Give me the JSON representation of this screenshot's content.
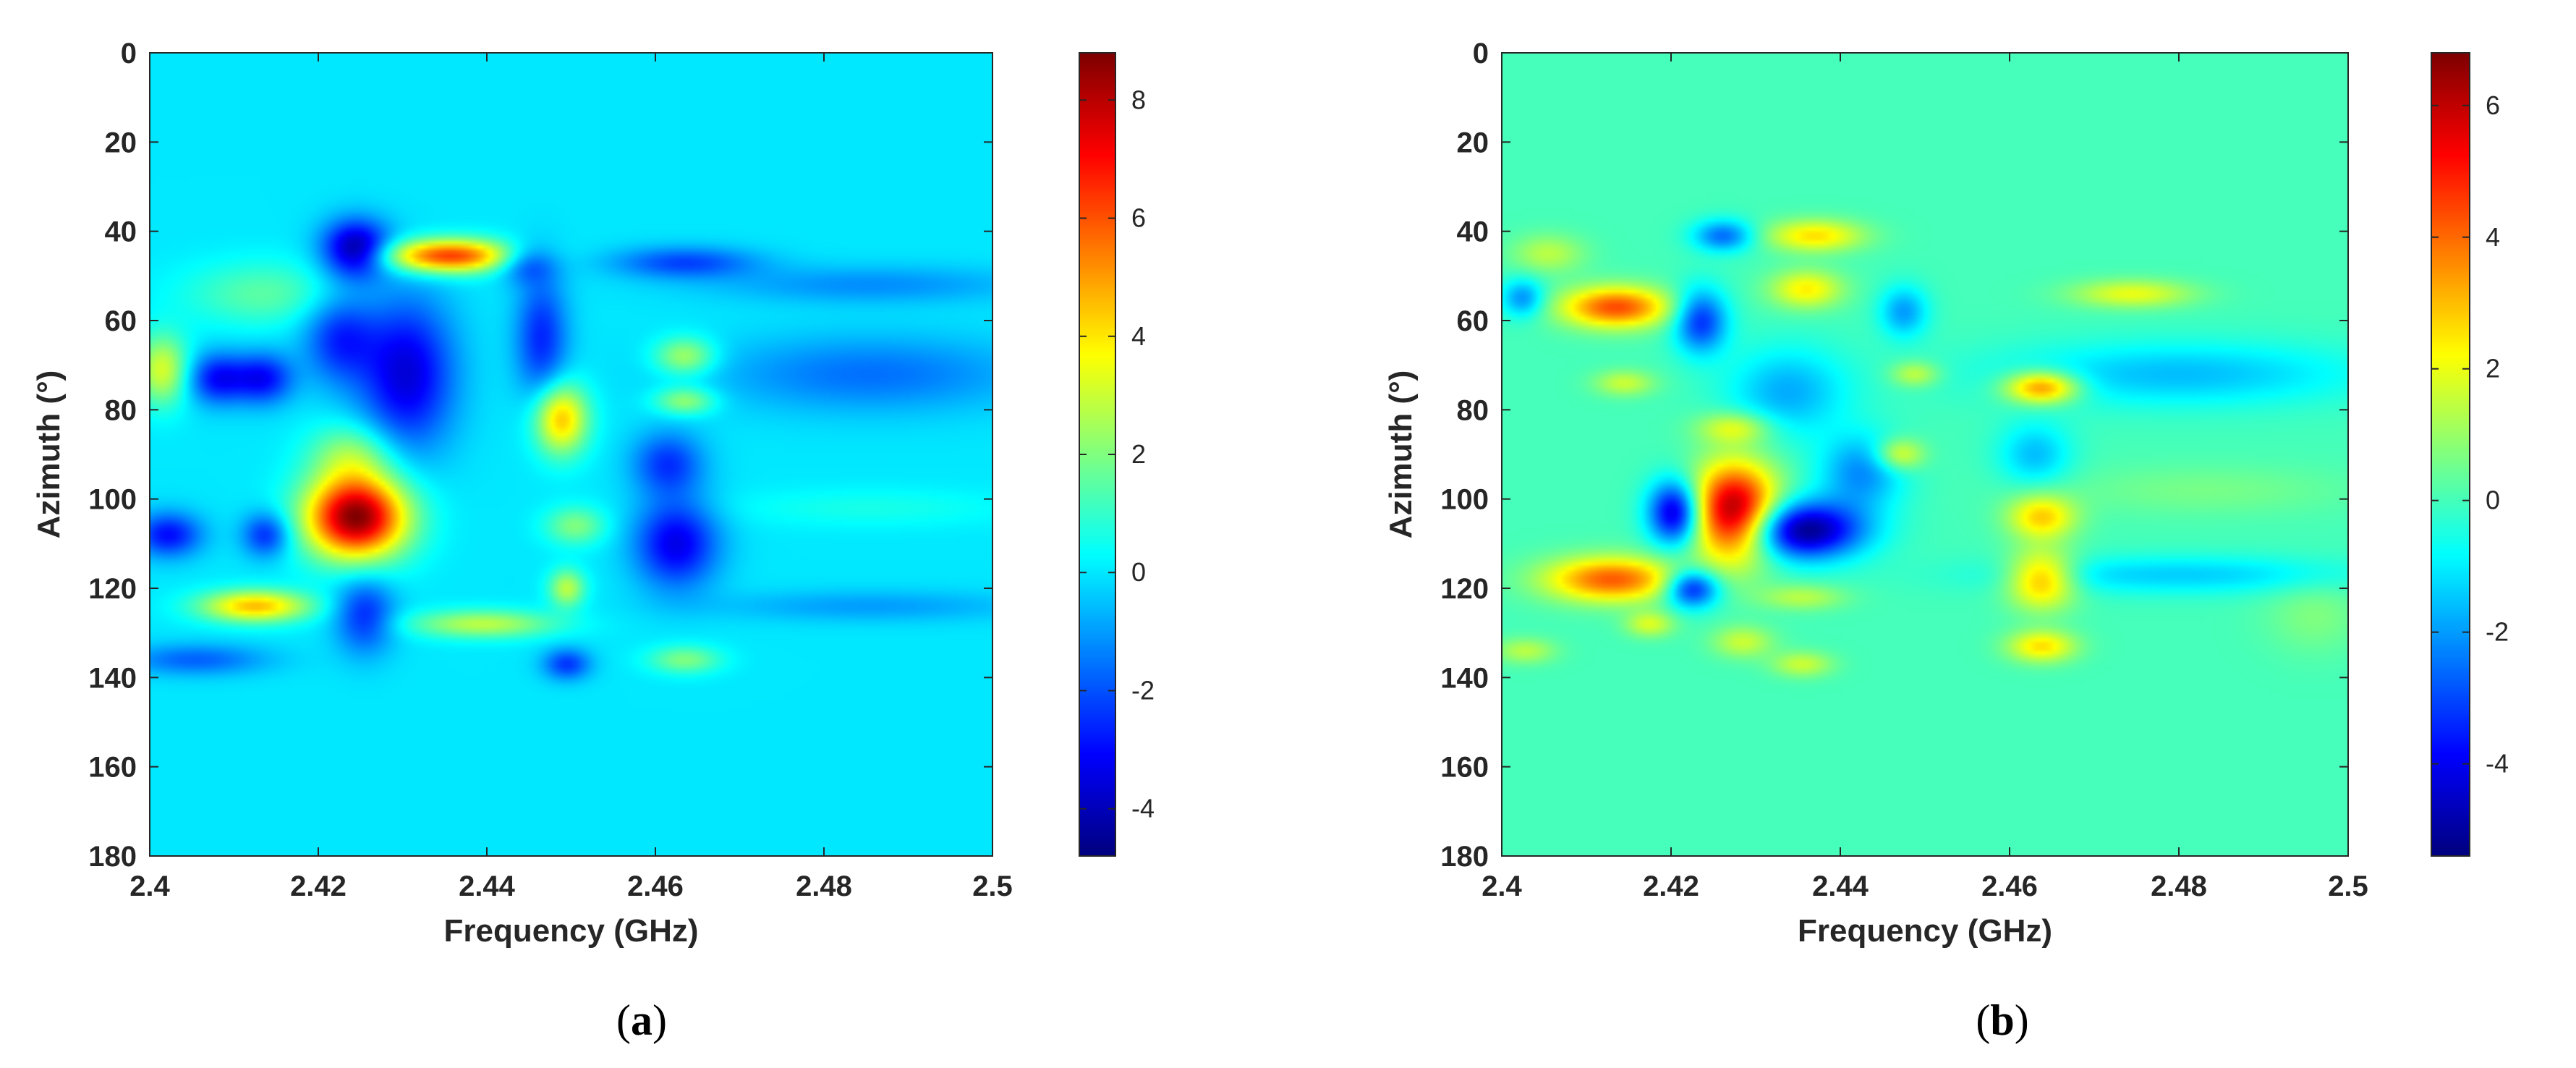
{
  "chart_data": [
    {
      "type": "heatmap",
      "panel": "(a)",
      "panel_letter": "a",
      "xlabel": "Frequency (GHz)",
      "ylabel": "Azimuth (°)",
      "xlim": [
        2.4,
        2.5
      ],
      "ylim": [
        0,
        180
      ],
      "y_reversed": true,
      "xticks": [
        2.4,
        2.42,
        2.44,
        2.46,
        2.48,
        2.5
      ],
      "xtick_labels": [
        "2.4",
        "2.42",
        "2.44",
        "2.46",
        "2.48",
        "2.5"
      ],
      "yticks": [
        0,
        20,
        40,
        60,
        80,
        100,
        120,
        140,
        160,
        180
      ],
      "ytick_labels": [
        "0",
        "20",
        "40",
        "60",
        "80",
        "100",
        "120",
        "140",
        "160",
        "180"
      ],
      "colormap": "jet",
      "clim": [
        -4.8,
        8.8
      ],
      "colorbar_ticks": [
        8,
        6,
        4,
        2,
        0,
        -2,
        -4
      ],
      "colorbar_tick_labels": [
        "8",
        "6",
        "4",
        "2",
        "0",
        "-2",
        "-4"
      ],
      "background_value": 0,
      "blobs": [
        {
          "f": 2.4245,
          "az": 104,
          "sf": 0.0042,
          "sa": 6.5,
          "v": 8.8
        },
        {
          "f": 2.4355,
          "az": 45.5,
          "sf": 0.0055,
          "sa": 2.6,
          "v": 6.4
        },
        {
          "f": 2.4488,
          "az": 82,
          "sf": 0.0022,
          "sa": 5.5,
          "v": 4.6
        },
        {
          "f": 2.4125,
          "az": 124,
          "sf": 0.0045,
          "sa": 2.5,
          "v": 4.6
        },
        {
          "f": 2.4015,
          "az": 71,
          "sf": 0.0022,
          "sa": 5.5,
          "v": 3.2
        },
        {
          "f": 2.4395,
          "az": 128,
          "sf": 0.006,
          "sa": 2.2,
          "v": 2.8
        },
        {
          "f": 2.4495,
          "az": 120,
          "sf": 0.0015,
          "sa": 3.0,
          "v": 2.8
        },
        {
          "f": 2.4505,
          "az": 106,
          "sf": 0.0025,
          "sa": 3.0,
          "v": 2.0
        },
        {
          "f": 2.4635,
          "az": 68,
          "sf": 0.0025,
          "sa": 3.0,
          "v": 2.6
        },
        {
          "f": 2.4635,
          "az": 78,
          "sf": 0.0025,
          "sa": 2.2,
          "v": 2.4
        },
        {
          "f": 2.4635,
          "az": 136,
          "sf": 0.003,
          "sa": 2.2,
          "v": 2.0
        },
        {
          "f": 2.4135,
          "az": 54,
          "sf": 0.0065,
          "sa": 5.0,
          "v": 1.5
        },
        {
          "f": 2.424,
          "az": 90,
          "sf": 0.0035,
          "sa": 5.0,
          "v": 2.2
        },
        {
          "f": 2.4245,
          "az": 44,
          "sf": 0.0028,
          "sa": 4.5,
          "v": -4.6
        },
        {
          "f": 2.4305,
          "az": 72,
          "sf": 0.004,
          "sa": 12,
          "v": -3.6
        },
        {
          "f": 2.4225,
          "az": 64,
          "sf": 0.003,
          "sa": 7,
          "v": -2.5
        },
        {
          "f": 2.408,
          "az": 73,
          "sf": 0.0025,
          "sa": 4,
          "v": -3.0
        },
        {
          "f": 2.4135,
          "az": 73,
          "sf": 0.0025,
          "sa": 4,
          "v": -3.0
        },
        {
          "f": 2.4022,
          "az": 108,
          "sf": 0.0028,
          "sa": 3.5,
          "v": -3.0
        },
        {
          "f": 2.4138,
          "az": 108,
          "sf": 0.002,
          "sa": 3.5,
          "v": -2.6
        },
        {
          "f": 2.4255,
          "az": 126,
          "sf": 0.0025,
          "sa": 6,
          "v": -2.6
        },
        {
          "f": 2.4465,
          "az": 64,
          "sf": 0.0022,
          "sa": 10,
          "v": -2.6
        },
        {
          "f": 2.4625,
          "az": 110,
          "sf": 0.0035,
          "sa": 7,
          "v": -3.4
        },
        {
          "f": 2.4615,
          "az": 92,
          "sf": 0.003,
          "sa": 5,
          "v": -2.4
        },
        {
          "f": 2.4635,
          "az": 47,
          "sf": 0.006,
          "sa": 2.5,
          "v": -2.2
        },
        {
          "f": 2.4445,
          "az": 47,
          "sf": 0.0025,
          "sa": 3.0,
          "v": -2.2
        },
        {
          "f": 2.4495,
          "az": 137,
          "sf": 0.002,
          "sa": 2.5,
          "v": -2.4
        },
        {
          "f": 2.4055,
          "az": 136,
          "sf": 0.006,
          "sa": 2.5,
          "v": -1.8
        },
        {
          "f": 2.4855,
          "az": 72,
          "sf": 0.013,
          "sa": 6,
          "v": -1.6
        },
        {
          "f": 2.4855,
          "az": 52,
          "sf": 0.013,
          "sa": 3,
          "v": -1.2
        },
        {
          "f": 2.4855,
          "az": 124,
          "sf": 0.013,
          "sa": 2.5,
          "v": -1.0
        },
        {
          "f": 2.4855,
          "az": 102,
          "sf": 0.012,
          "sa": 3,
          "v": 0.6
        }
      ]
    },
    {
      "type": "heatmap",
      "panel": "(b)",
      "panel_letter": "b",
      "xlabel": "Frequency (GHz)",
      "ylabel": "Azimuth (°)",
      "xlim": [
        2.4,
        2.5
      ],
      "ylim": [
        0,
        180
      ],
      "y_reversed": true,
      "xticks": [
        2.4,
        2.42,
        2.44,
        2.46,
        2.48,
        2.5
      ],
      "xtick_labels": [
        "2.4",
        "2.42",
        "2.44",
        "2.46",
        "2.48",
        "2.5"
      ],
      "yticks": [
        0,
        20,
        40,
        60,
        80,
        100,
        120,
        140,
        160,
        180
      ],
      "ytick_labels": [
        "0",
        "20",
        "40",
        "60",
        "80",
        "100",
        "120",
        "140",
        "160",
        "180"
      ],
      "colormap": "jet",
      "clim": [
        -5.4,
        6.8
      ],
      "colorbar_ticks": [
        6,
        4,
        2,
        0,
        -2,
        -4
      ],
      "colorbar_tick_labels": [
        "6",
        "4",
        "2",
        "0",
        "-2",
        "-4"
      ],
      "background_value": 0,
      "blobs": [
        {
          "f": 2.4275,
          "az": 103,
          "sf": 0.0035,
          "sa": 7.5,
          "v": 6.8
        },
        {
          "f": 2.4135,
          "az": 57,
          "sf": 0.0045,
          "sa": 3.2,
          "v": 4.4
        },
        {
          "f": 2.413,
          "az": 118,
          "sf": 0.0055,
          "sa": 3.5,
          "v": 4.2
        },
        {
          "f": 2.4638,
          "az": 75,
          "sf": 0.003,
          "sa": 2.5,
          "v": 4.0
        },
        {
          "f": 2.4638,
          "az": 104,
          "sf": 0.0028,
          "sa": 3.5,
          "v": 2.8
        },
        {
          "f": 2.4638,
          "az": 118,
          "sf": 0.0028,
          "sa": 4.5,
          "v": 3.4
        },
        {
          "f": 2.4638,
          "az": 133,
          "sf": 0.0028,
          "sa": 2.5,
          "v": 2.6
        },
        {
          "f": 2.437,
          "az": 41,
          "sf": 0.004,
          "sa": 2.5,
          "v": 2.6
        },
        {
          "f": 2.436,
          "az": 53,
          "sf": 0.003,
          "sa": 3,
          "v": 2.4
        },
        {
          "f": 2.4745,
          "az": 54,
          "sf": 0.005,
          "sa": 2.2,
          "v": 2.0
        },
        {
          "f": 2.447,
          "az": 90,
          "sf": 0.002,
          "sa": 2.5,
          "v": 2.2
        },
        {
          "f": 2.4488,
          "az": 72,
          "sf": 0.002,
          "sa": 2,
          "v": 1.6
        },
        {
          "f": 2.4275,
          "az": 84,
          "sf": 0.003,
          "sa": 2.5,
          "v": 2.0
        },
        {
          "f": 2.4285,
          "az": 132,
          "sf": 0.0025,
          "sa": 2.5,
          "v": 1.6
        },
        {
          "f": 2.4175,
          "az": 128,
          "sf": 0.002,
          "sa": 2,
          "v": 1.8
        },
        {
          "f": 2.4355,
          "az": 137,
          "sf": 0.0025,
          "sa": 2,
          "v": 1.6
        },
        {
          "f": 2.4028,
          "az": 134,
          "sf": 0.0025,
          "sa": 2,
          "v": 1.4
        },
        {
          "f": 2.4055,
          "az": 45,
          "sf": 0.003,
          "sa": 3,
          "v": 1.4
        },
        {
          "f": 2.4145,
          "az": 74,
          "sf": 0.0025,
          "sa": 2,
          "v": 1.6
        },
        {
          "f": 2.4355,
          "az": 122,
          "sf": 0.0035,
          "sa": 2,
          "v": 1.4
        },
        {
          "f": 2.4355,
          "az": 107,
          "sf": 0.005,
          "sa": 4.5,
          "v": -5.4
        },
        {
          "f": 2.4205,
          "az": 103,
          "sf": 0.0022,
          "sa": 5,
          "v": -4.8
        },
        {
          "f": 2.4225,
          "az": 120,
          "sf": 0.0022,
          "sa": 3,
          "v": -4.0
        },
        {
          "f": 2.4235,
          "az": 60,
          "sf": 0.0022,
          "sa": 5,
          "v": -3.4
        },
        {
          "f": 2.4262,
          "az": 41,
          "sf": 0.0025,
          "sa": 2.5,
          "v": -2.6
        },
        {
          "f": 2.4425,
          "az": 94,
          "sf": 0.0035,
          "sa": 6,
          "v": -2.2
        },
        {
          "f": 2.4475,
          "az": 58,
          "sf": 0.002,
          "sa": 4,
          "v": -2.0
        },
        {
          "f": 2.4025,
          "az": 55,
          "sf": 0.0018,
          "sa": 3,
          "v": -2.2
        },
        {
          "f": 2.4338,
          "az": 76,
          "sf": 0.005,
          "sa": 7,
          "v": -1.8
        },
        {
          "f": 2.463,
          "az": 90,
          "sf": 0.003,
          "sa": 5,
          "v": -1.6
        },
        {
          "f": 2.48,
          "az": 72,
          "sf": 0.015,
          "sa": 5,
          "v": -1.6
        },
        {
          "f": 2.48,
          "az": 117,
          "sf": 0.015,
          "sa": 3,
          "v": -1.4
        },
        {
          "f": 2.483,
          "az": 98,
          "sf": 0.012,
          "sa": 4,
          "v": 0.6
        },
        {
          "f": 2.496,
          "az": 126,
          "sf": 0.004,
          "sa": 6,
          "v": 0.7
        }
      ]
    }
  ]
}
